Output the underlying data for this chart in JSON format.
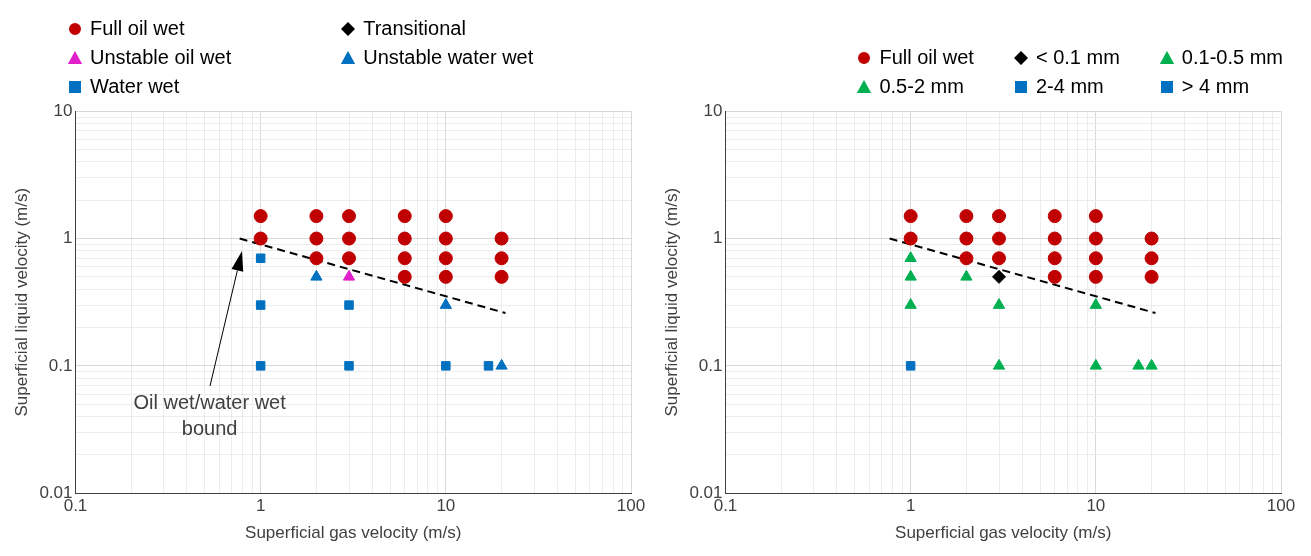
{
  "chart_data": [
    {
      "type": "scatter",
      "xlabel": "Superficial gas velocity (m/s)",
      "ylabel": "Superficial liquid velocity (m/s)",
      "log": "xy",
      "grid": true,
      "legend": "top",
      "xlim": [
        0.1,
        100
      ],
      "ylim": [
        0.01,
        10
      ],
      "xticks": [
        0.1,
        {
          "value": 0.2,
          "label": null
        },
        {
          "value": 0.3,
          "label": null
        },
        {
          "value": 0.4,
          "label": null
        },
        {
          "value": 0.5,
          "label": null
        },
        {
          "value": 0.6,
          "label": null
        },
        {
          "value": 0.7,
          "label": null
        },
        {
          "value": 0.8,
          "label": null
        },
        {
          "value": 0.9,
          "label": null
        },
        1,
        {
          "value": 2,
          "label": null
        },
        {
          "value": 3,
          "label": null
        },
        {
          "value": 4,
          "label": null
        },
        {
          "value": 5,
          "label": null
        },
        {
          "value": 6,
          "label": null
        },
        {
          "value": 7,
          "label": null
        },
        {
          "value": 8,
          "label": null
        },
        {
          "value": 9,
          "label": null
        },
        10,
        {
          "value": 20,
          "label": null
        },
        {
          "value": 30,
          "label": null
        },
        {
          "value": 40,
          "label": null
        },
        {
          "value": 50,
          "label": null
        },
        {
          "value": 60,
          "label": null
        },
        {
          "value": 70,
          "label": null
        },
        {
          "value": 80,
          "label": null
        },
        {
          "value": 90,
          "label": null
        },
        100
      ],
      "yticks": [
        0.01,
        {
          "value": 0.02,
          "label": null
        },
        {
          "value": 0.03,
          "label": null
        },
        {
          "value": 0.04,
          "label": null
        },
        {
          "value": 0.05,
          "label": null
        },
        {
          "value": 0.06,
          "label": null
        },
        {
          "value": 0.07,
          "label": null
        },
        {
          "value": 0.08,
          "label": null
        },
        {
          "value": 0.09,
          "label": null
        },
        0.1,
        {
          "value": 0.2,
          "label": null
        },
        {
          "value": 0.3,
          "label": null
        },
        {
          "value": 0.4,
          "label": null
        },
        {
          "value": 0.5,
          "label": null
        },
        {
          "value": 0.6,
          "label": null
        },
        {
          "value": 0.7,
          "label": null
        },
        {
          "value": 0.8,
          "label": null
        },
        {
          "value": 0.9,
          "label": null
        },
        1,
        {
          "value": 2,
          "label": null
        },
        {
          "value": 3,
          "label": null
        },
        {
          "value": 4,
          "label": null
        },
        {
          "value": 5,
          "label": null
        },
        {
          "value": 6,
          "label": null
        },
        {
          "value": 7,
          "label": null
        },
        {
          "value": 8,
          "label": null
        },
        {
          "value": 9,
          "label": null
        },
        10
      ],
      "series": [
        {
          "name": "Full oil wet",
          "color": "#c00000",
          "marker": "circle",
          "x": [
            1,
            1,
            2,
            2,
            2,
            3,
            3,
            3,
            6,
            6,
            6,
            6,
            10,
            10,
            10,
            10,
            20,
            20,
            20
          ],
          "values": [
            1.5,
            1,
            1.5,
            1,
            0.7,
            1.5,
            1,
            0.7,
            1.5,
            1,
            0.7,
            0.5,
            1.5,
            1,
            0.7,
            0.5,
            1,
            0.7,
            0.5
          ]
        },
        {
          "name": "Transitional",
          "color": "#000000",
          "marker": "diamond"
        },
        {
          "name": "Unstable oil wet",
          "color": "#e020c8",
          "marker": "triangle",
          "x": [
            3
          ],
          "values": [
            0.5
          ]
        },
        {
          "name": "Unstable water wet",
          "color": "#0070c0",
          "marker": "triangle",
          "x": [
            2,
            10,
            20
          ],
          "values": [
            0.5,
            0.3,
            0.1
          ]
        },
        {
          "name": "Water wet",
          "color": "#0070c0",
          "marker": "square",
          "x": [
            1,
            1,
            1,
            3,
            3,
            10,
            17
          ],
          "values": [
            0.7,
            0.3,
            0.1,
            0.3,
            0.1,
            0.1,
            0.1
          ]
        },
        {
          "type": "line",
          "color": "#000000",
          "line_style": "dashed",
          "marker": "none",
          "x": [
            0.77,
            21
          ],
          "values": [
            1.0,
            0.26
          ]
        }
      ],
      "annotations": [
        "Oil wet/water wet bound"
      ]
    },
    {
      "type": "scatter",
      "xlabel": "Superficial gas velocity (m/s)",
      "ylabel": "Superficial liquid velocity (m/s)",
      "log": "xy",
      "grid": true,
      "legend": "top",
      "xlim": [
        0.1,
        100
      ],
      "ylim": [
        0.01,
        10
      ],
      "xticks": [
        0.1,
        {
          "value": 0.2,
          "label": null
        },
        {
          "value": 0.3,
          "label": null
        },
        {
          "value": 0.4,
          "label": null
        },
        {
          "value": 0.5,
          "label": null
        },
        {
          "value": 0.6,
          "label": null
        },
        {
          "value": 0.7,
          "label": null
        },
        {
          "value": 0.8,
          "label": null
        },
        {
          "value": 0.9,
          "label": null
        },
        1,
        {
          "value": 2,
          "label": null
        },
        {
          "value": 3,
          "label": null
        },
        {
          "value": 4,
          "label": null
        },
        {
          "value": 5,
          "label": null
        },
        {
          "value": 6,
          "label": null
        },
        {
          "value": 7,
          "label": null
        },
        {
          "value": 8,
          "label": null
        },
        {
          "value": 9,
          "label": null
        },
        10,
        {
          "value": 20,
          "label": null
        },
        {
          "value": 30,
          "label": null
        },
        {
          "value": 40,
          "label": null
        },
        {
          "value": 50,
          "label": null
        },
        {
          "value": 60,
          "label": null
        },
        {
          "value": 70,
          "label": null
        },
        {
          "value": 80,
          "label": null
        },
        {
          "value": 90,
          "label": null
        },
        100
      ],
      "yticks": [
        0.01,
        {
          "value": 0.02,
          "label": null
        },
        {
          "value": 0.03,
          "label": null
        },
        {
          "value": 0.04,
          "label": null
        },
        {
          "value": 0.05,
          "label": null
        },
        {
          "value": 0.06,
          "label": null
        },
        {
          "value": 0.07,
          "label": null
        },
        {
          "value": 0.08,
          "label": null
        },
        {
          "value": 0.09,
          "label": null
        },
        0.1,
        {
          "value": 0.2,
          "label": null
        },
        {
          "value": 0.3,
          "label": null
        },
        {
          "value": 0.4,
          "label": null
        },
        {
          "value": 0.5,
          "label": null
        },
        {
          "value": 0.6,
          "label": null
        },
        {
          "value": 0.7,
          "label": null
        },
        {
          "value": 0.8,
          "label": null
        },
        {
          "value": 0.9,
          "label": null
        },
        1,
        {
          "value": 2,
          "label": null
        },
        {
          "value": 3,
          "label": null
        },
        {
          "value": 4,
          "label": null
        },
        {
          "value": 5,
          "label": null
        },
        {
          "value": 6,
          "label": null
        },
        {
          "value": 7,
          "label": null
        },
        {
          "value": 8,
          "label": null
        },
        {
          "value": 9,
          "label": null
        },
        10
      ],
      "series": [
        {
          "name": "Full oil wet",
          "color": "#c00000",
          "marker": "circle",
          "x": [
            1,
            1,
            2,
            2,
            2,
            3,
            3,
            3,
            6,
            6,
            6,
            6,
            10,
            10,
            10,
            10,
            20,
            20,
            20
          ],
          "values": [
            1.5,
            1,
            1.5,
            1,
            0.7,
            1.5,
            1,
            0.7,
            1.5,
            1,
            0.7,
            0.5,
            1.5,
            1,
            0.7,
            0.5,
            1,
            0.7,
            0.5
          ]
        },
        {
          "name": "< 0.1 mm",
          "color": "#000000",
          "marker": "diamond",
          "x": [
            3
          ],
          "values": [
            0.5
          ]
        },
        {
          "name": "0.1-0.5 mm",
          "color": "#00b050",
          "marker": "triangle",
          "x": [
            1,
            2,
            3,
            10,
            10,
            17,
            20
          ],
          "values": [
            0.7,
            0.5,
            0.3,
            0.3,
            0.1,
            0.1,
            0.1
          ]
        },
        {
          "name": "0.5-2 mm",
          "color": "#00b050",
          "marker": "triangle",
          "x": [
            1,
            1,
            3
          ],
          "values": [
            0.5,
            0.3,
            0.1
          ]
        },
        {
          "name": "2-4 mm",
          "color": "#0070c0",
          "marker": "square",
          "x": [
            1
          ],
          "values": [
            0.1
          ]
        },
        {
          "name": "> 4 mm",
          "color": "#0070c0",
          "marker": "square"
        },
        {
          "type": "line",
          "color": "#000000",
          "line_style": "dashed",
          "marker": "none",
          "x": [
            0.77,
            21
          ],
          "values": [
            1.0,
            0.26
          ]
        }
      ]
    }
  ]
}
